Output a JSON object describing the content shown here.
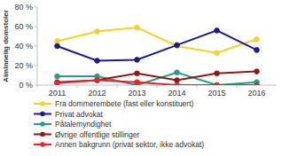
{
  "chart_data": {
    "type": "line",
    "y_label": "Alminnelig domstoler",
    "categories": [
      "2011",
      "2012",
      "2013",
      "2014",
      "2015",
      "2016"
    ],
    "ylim": [
      0,
      80
    ],
    "yticks": [
      {
        "value": 0,
        "label": "0 %"
      },
      {
        "value": 20,
        "label": "20 %"
      },
      {
        "value": 40,
        "label": "40 %"
      },
      {
        "value": 60,
        "label": "60 %"
      },
      {
        "value": 80,
        "label": "80 %"
      }
    ],
    "grid": false,
    "legend": "bottom",
    "marker": "circle",
    "series": [
      {
        "name": "Fra dommerembete (fast eller konstituert)",
        "color": "#f2d32b",
        "values": [
          45,
          55,
          59,
          40,
          33,
          47
        ]
      },
      {
        "name": "Privat advokat",
        "color": "#1c1c8c",
        "values": [
          40,
          25,
          26,
          41,
          56,
          36
        ]
      },
      {
        "name": "Påtalemyndighet",
        "color": "#2a9a8c",
        "values": [
          9,
          9,
          0,
          13,
          0,
          3
        ]
      },
      {
        "name": "Øvrige offentlige stillinger",
        "color": "#8a1a1a",
        "values": [
          3,
          5,
          12,
          5,
          12,
          14
        ]
      },
      {
        "name": "Annen bakgrunn (privat sektor, ikke advokat)",
        "color": "#e8262a",
        "values": [
          2,
          5,
          3,
          0,
          0,
          0
        ]
      }
    ]
  }
}
